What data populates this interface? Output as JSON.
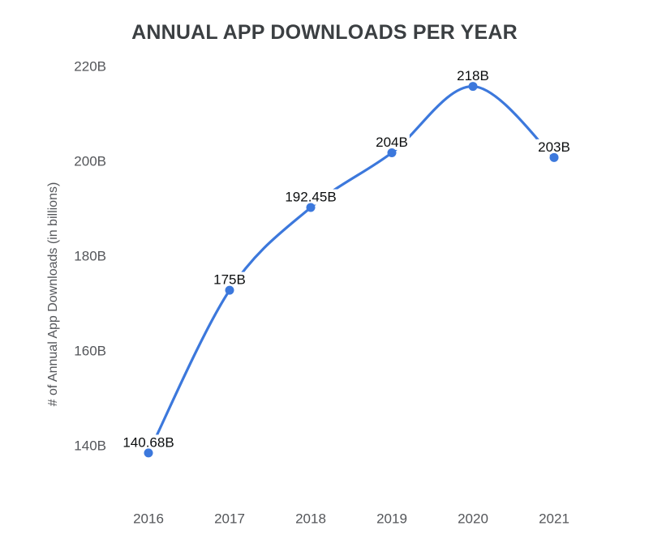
{
  "chart_data": {
    "type": "line",
    "title": "ANNUAL APP DOWNLOADS PER YEAR",
    "xlabel": "",
    "ylabel": "# of Annual App Downloads (in billions)",
    "categories": [
      "2016",
      "2017",
      "2018",
      "2019",
      "2020",
      "2021"
    ],
    "values": [
      140.68,
      175,
      192.45,
      204,
      218,
      203
    ],
    "point_labels": [
      "140.68B",
      "175B",
      "192.45B",
      "204B",
      "218B",
      "203B"
    ],
    "y_tick_values": [
      140,
      160,
      180,
      200,
      220
    ],
    "y_tick_labels": [
      "140B",
      "160B",
      "180B",
      "200B",
      "220B"
    ],
    "ylim": [
      140,
      220
    ],
    "grid": "off",
    "legend": "none",
    "line_style": "smooth",
    "colors": {
      "series": "#3c78dc",
      "title": "#3b3f42",
      "axis_labels": "#54565a",
      "data_labels": "#0b0d0e",
      "background": "#ffffff"
    }
  }
}
